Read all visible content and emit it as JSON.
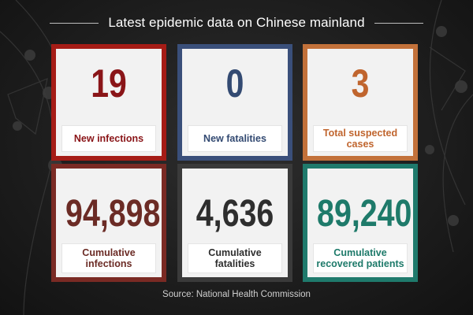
{
  "title": "Latest epidemic data on Chinese mainland",
  "cards": [
    {
      "value": "19",
      "label": "New infections",
      "frame_color": "#a51c16",
      "text_color": "#8a1518"
    },
    {
      "value": "0",
      "label": "New fatalities",
      "frame_color": "#3a4f7a",
      "text_color": "#334a72"
    },
    {
      "value": "3",
      "label": "Total suspected cases",
      "frame_color": "#c2713a",
      "text_color": "#c0652e"
    },
    {
      "value": "94,898",
      "label": "Cumulative infections",
      "frame_color": "#7a2a24",
      "text_color": "#6b2b25"
    },
    {
      "value": "4,636",
      "label": "Cumulative fatalities",
      "frame_color": "#3a3a3a",
      "text_color": "#2e2e2e"
    },
    {
      "value": "89,240",
      "label": "Cumulative recovered patients",
      "frame_color": "#1f7a6c",
      "text_color": "#1e7a6a"
    }
  ],
  "source": "Source: National Health Commission"
}
